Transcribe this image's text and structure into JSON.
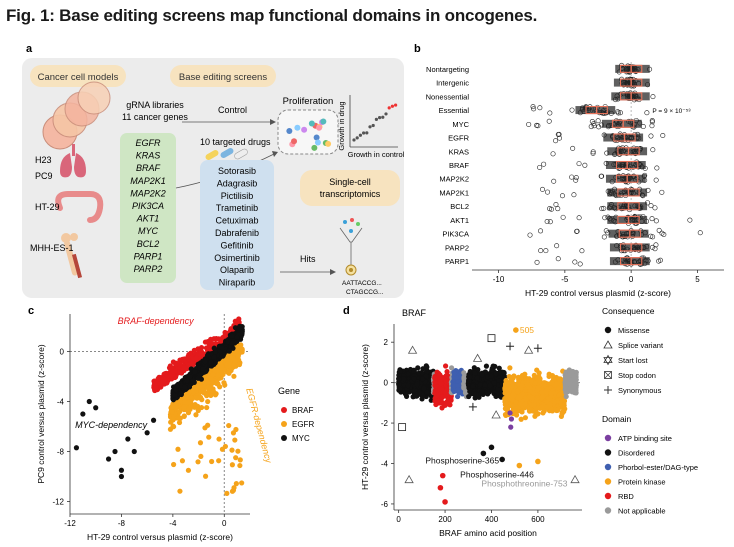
{
  "figure": {
    "title": "Fig. 1: Base editing screens map functional domains in oncogenes."
  },
  "panel_a": {
    "label": "a",
    "cancer_models_title": "Cancer cell models",
    "cell_lines": [
      "H23",
      "PC9",
      "HT-29",
      "MHH-ES-1"
    ],
    "base_editing_title": "Base editing screens",
    "gRNA_libraries": "gRNA libraries",
    "cancer_genes": "11 cancer genes",
    "genes": [
      "EGFR",
      "KRAS",
      "BRAF",
      "MAP2K1",
      "MAP2K2",
      "PIK3CA",
      "AKT1",
      "MYC",
      "BCL2",
      "PARP1",
      "PARP2"
    ],
    "control_label": "Control",
    "proliferation_label": "Proliferation",
    "growth_in_drug": "Growth in drug",
    "growth_in_control": "Growth in control",
    "targeted_drugs_label": "10 targeted drugs",
    "drugs": [
      "Sotorasib",
      "Adagrasib",
      "Pictilisib",
      "Trametinib",
      "Cetuximab",
      "Dabrafenib",
      "Gefitinib",
      "Osimertinib",
      "Olaparib",
      "Niraparib"
    ],
    "single_cell_title": "Single-cell transcriptomics",
    "single_cell_lines": [
      "Single-cell",
      "transcriptomics"
    ],
    "hits_label": "Hits",
    "barcode_1": "AATTACCG...",
    "barcode_2": "CTAGCCG..."
  },
  "panel_b": {
    "label": "b",
    "chart_data": {
      "type": "scatter",
      "categories": [
        "Nontargeting",
        "Intergenic",
        "Nonessential",
        "Essential",
        "MYC",
        "EGFR",
        "KRAS",
        "BRAF",
        "MAP2K2",
        "MAP2K1",
        "BCL2",
        "AKT1",
        "PIK3CA",
        "PARP2",
        "PARP1"
      ],
      "xlabel": "HT-29 control versus plasmid (z-score)",
      "xlim": [
        -12,
        7
      ],
      "xticks": [
        -10,
        -5,
        0,
        5
      ],
      "annotation": "P = 9 × 10⁻⁵³",
      "medians": [
        0,
        0,
        0,
        -2.6,
        -0.6,
        -0.5,
        -0.2,
        -0.3,
        -0.3,
        -0.2,
        -0.2,
        -0.2,
        -0.1,
        0,
        0
      ],
      "ranges": [
        [
          -1.2,
          1.4
        ],
        [
          -1.3,
          1.6
        ],
        [
          -1.5,
          1.7
        ],
        [
          -11.0,
          1.5
        ],
        [
          -10.5,
          1.8
        ],
        [
          -8.5,
          2.4
        ],
        [
          -6.5,
          2.0
        ],
        [
          -7.5,
          2.0
        ],
        [
          -7.0,
          2.0
        ],
        [
          -8.0,
          2.5
        ],
        [
          -9.0,
          2.0
        ],
        [
          -8.0,
          4.5
        ],
        [
          -8.0,
          5.5
        ],
        [
          -7.0,
          2.0
        ],
        [
          -7.5,
          2.4
        ]
      ]
    }
  },
  "panel_c": {
    "label": "c",
    "chart_data": {
      "type": "scatter",
      "xlabel": "HT-29 control versus plasmid (z-score)",
      "ylabel": "PC9 control versus plasmid (z-score)",
      "xlim": [
        -12,
        2
      ],
      "ylim": [
        -13,
        3
      ],
      "xticks": [
        -12,
        -8,
        -4,
        0
      ],
      "yticks": [
        0,
        -4,
        -8,
        -12
      ],
      "legend_title": "Gene",
      "legend_placement": "right",
      "series": [
        {
          "name": "BRAF",
          "color": "#e41a1c"
        },
        {
          "name": "EGFR",
          "color": "#f5a31a"
        },
        {
          "name": "MYC",
          "color": "#111111"
        }
      ],
      "annotations": [
        "BRAF-dependency",
        "EGFR-dependency",
        "MYC-dependency"
      ],
      "myc_outliers": [
        [
          -11.5,
          -7.7
        ],
        [
          -11.0,
          -5.0
        ],
        [
          -10.5,
          -4.0
        ],
        [
          -10.0,
          -4.5
        ],
        [
          -9.0,
          -8.6
        ],
        [
          -8.5,
          -8.0
        ],
        [
          -8.0,
          -9.5
        ],
        [
          -8.0,
          -10.0
        ],
        [
          -7.5,
          -7.0
        ],
        [
          -7.0,
          -8.0
        ],
        [
          -6.0,
          -6.5
        ],
        [
          -5.5,
          -5.5
        ]
      ]
    }
  },
  "panel_d": {
    "label": "d",
    "gene_label": "BRAF",
    "chart_data": {
      "type": "scatter",
      "xlabel": "BRAF amino acid position",
      "ylabel": "HT-29 control versus plasmid (z-score)",
      "xlim": [
        -20,
        790
      ],
      "ylim": [
        -6.3,
        2.9
      ],
      "xticks": [
        0,
        200,
        400,
        600
      ],
      "yticks": [
        2,
        0,
        -2,
        -4,
        -6
      ],
      "domains": [
        {
          "name": "Disordered",
          "start": 0,
          "end": 150,
          "color": "#111111"
        },
        {
          "name": "Not applicable",
          "start": 150,
          "end": 155,
          "color": "#9a9a9a"
        },
        {
          "name": "RBD",
          "start": 155,
          "end": 227,
          "color": "#e41a1c"
        },
        {
          "name": "Not applicable",
          "start": 227,
          "end": 234,
          "color": "#9a9a9a"
        },
        {
          "name": "Phorbol-ester/DAG-type",
          "start": 234,
          "end": 280,
          "color": "#3f5fb0"
        },
        {
          "name": "Not applicable",
          "start": 280,
          "end": 300,
          "color": "#9a9a9a"
        },
        {
          "name": "Disordered",
          "start": 300,
          "end": 457,
          "color": "#111111"
        },
        {
          "name": "Protein kinase",
          "start": 457,
          "end": 717,
          "color": "#f5a31a"
        },
        {
          "name": "Not applicable",
          "start": 717,
          "end": 766,
          "color": "#9a9a9a"
        }
      ],
      "annotations": [
        {
          "text": "505",
          "x": 505,
          "y": 2.6
        },
        {
          "text": "Phosphoserine-365",
          "x": 365,
          "y": -3.9
        },
        {
          "text": "Phosphoserine-446",
          "x": 446,
          "y": -4.5
        },
        {
          "text": "Phosphothreonine-753",
          "x": 753,
          "y": -5.0
        }
      ],
      "consequence_title": "Consequence",
      "consequences": [
        "Missense",
        "Splice variant",
        "Start lost",
        "Stop codon",
        "Synonymous"
      ],
      "domain_title": "Domain",
      "domain_legend": [
        {
          "name": "ATP binding site",
          "color": "#7b3fa0"
        },
        {
          "name": "Disordered",
          "color": "#111111"
        },
        {
          "name": "Phorbol-ester/DAG-type",
          "color": "#3f5fb0"
        },
        {
          "name": "Protein kinase",
          "color": "#f5a31a"
        },
        {
          "name": "RBD",
          "color": "#e41a1c"
        },
        {
          "name": "Not applicable",
          "color": "#9a9a9a"
        }
      ]
    }
  }
}
